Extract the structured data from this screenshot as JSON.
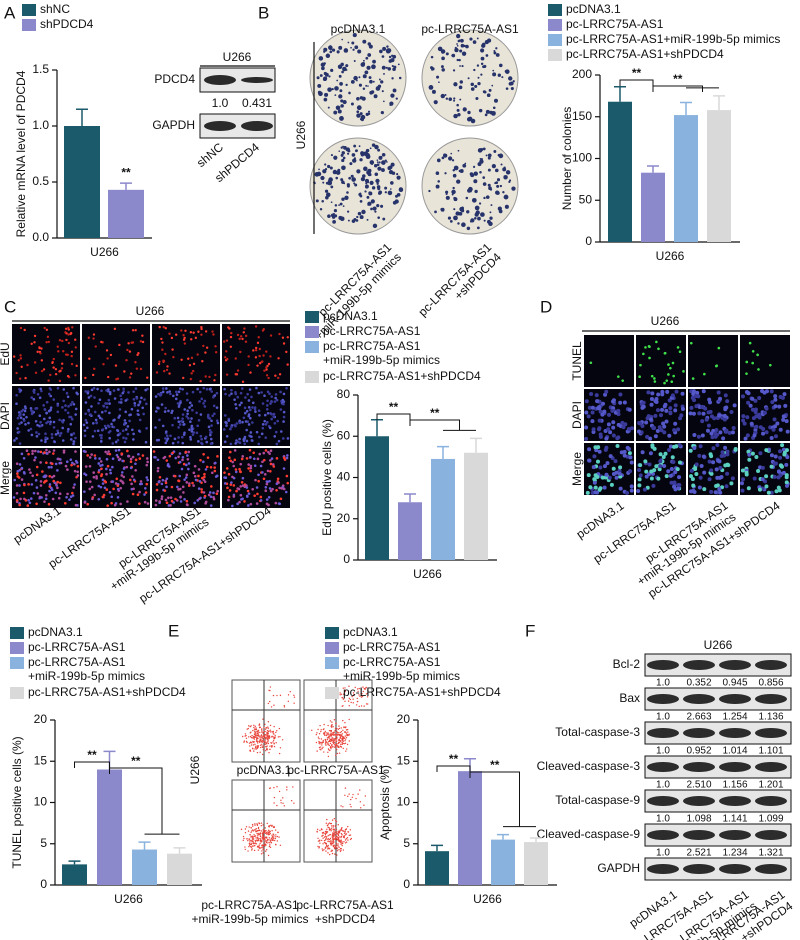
{
  "panel_labels": [
    "A",
    "B",
    "C",
    "D",
    "E",
    "F"
  ],
  "blot_a": {
    "cell_line": "U266",
    "rows": [
      "PDCD4",
      "GAPDH"
    ],
    "ratios": [
      "1.0",
      "0.431"
    ],
    "lanes": [
      "shNC",
      "shPDCD4"
    ]
  },
  "colony_images": {
    "cell_line": "U266",
    "columns": [
      "pcDNA3.1",
      "pc-LRRC75A-AS1"
    ],
    "bottom": [
      "pc-LRRC75A-AS1\n+miR-199b-5p mimics",
      "pc-LRRC75A-AS1\n+shPDCD4"
    ]
  },
  "edu_images": {
    "cell_line": "U266",
    "rows": [
      "EdU",
      "DAPI",
      "Merge"
    ],
    "columns": [
      "pcDNA3.1",
      "pc-LRRC75A-AS1",
      "pc-LRRC75A-AS1\n+miR-199b-5p mimics",
      "pc-LRRC75A-AS1+shPDCD4"
    ]
  },
  "tunel_images": {
    "cell_line": "U266",
    "rows": [
      "TUNEL",
      "DAPI",
      "Merge"
    ],
    "columns": [
      "pcDNA3.1",
      "pc-LRRC75A-AS1",
      "pc-LRRC75A-AS1\n+miR-199b-5p mimics",
      "pc-LRRC75A-AS1+shPDCD4"
    ]
  },
  "flow_images": {
    "cell_line": "U266",
    "labels": [
      "pcDNA3.1",
      "pc-LRRC75A-AS1",
      "pc-LRRC75A-AS1\n+miR-199b-5p mimics",
      "pc-LRRC75A-AS1\n+shPDCD4"
    ]
  },
  "blot_f": {
    "cell_line": "U266",
    "rows": [
      {
        "name": "Bcl-2",
        "ratios": [
          "1.0",
          "0.352",
          "0.945",
          "0.856"
        ]
      },
      {
        "name": "Bax",
        "ratios": [
          "1.0",
          "2.663",
          "1.254",
          "1.136"
        ]
      },
      {
        "name": "Total-caspase-3",
        "ratios": [
          "1.0",
          "0.952",
          "1.014",
          "1.101"
        ]
      },
      {
        "name": "Cleaved-caspase-3",
        "ratios": [
          "1.0",
          "2.510",
          "1.156",
          "1.201"
        ]
      },
      {
        "name": "Total-caspase-9",
        "ratios": [
          "1.0",
          "1.098",
          "1.141",
          "1.099"
        ]
      },
      {
        "name": "Cleaved-caspase-9",
        "ratios": [
          "1.0",
          "2.521",
          "1.234",
          "1.321"
        ]
      },
      {
        "name": "GAPDH"
      }
    ],
    "lanes": [
      "pcDNA3.1",
      "pc-LRRC75A-AS1",
      "pc-LRRC75A-AS1\n+miR-199b-5p mimics",
      "pc-LRRC75A-AS1\n+shPDCD4"
    ]
  },
  "chart_data": [
    {
      "type": "bar",
      "ylabel": "Relative mRNA level of PDCD4",
      "categories": [
        "U266"
      ],
      "series": [
        {
          "name": "shNC",
          "color": "#1b5a6a",
          "values": [
            1.0
          ],
          "errors": [
            0.15
          ]
        },
        {
          "name": "shPDCD4",
          "color": "#8c88cc",
          "values": [
            0.43
          ],
          "errors": [
            0.06
          ]
        }
      ],
      "ylim": [
        0,
        1.5
      ],
      "yticks": [
        {
          "value": 0,
          "label": "0.0"
        },
        0.5,
        {
          "value": 1,
          "label": "1.0"
        },
        1.5
      ],
      "annotations": [
        "**"
      ]
    },
    {
      "type": "bar",
      "ylabel": "Number of colonies",
      "categories": [
        "U266"
      ],
      "series": [
        {
          "name": "pcDNA3.1",
          "color": "#1b5a6a",
          "values": [
            168
          ],
          "errors": [
            18
          ]
        },
        {
          "name": "pc-LRRC75A-AS1",
          "color": "#8c88cc",
          "values": [
            83
          ],
          "errors": [
            8
          ]
        },
        {
          "name": "pc-LRRC75A-AS1+miR-199b-5p mimics",
          "color": "#8ab2de",
          "values": [
            152
          ],
          "errors": [
            15
          ]
        },
        {
          "name": "pc-LRRC75A-AS1+shPDCD4",
          "color": "#d9d9d9",
          "values": [
            158
          ],
          "errors": [
            17
          ]
        }
      ],
      "ylim": [
        0,
        200
      ],
      "yticks": [
        0,
        50,
        100,
        150,
        200
      ],
      "annotations": [
        "**",
        "**"
      ]
    },
    {
      "type": "bar",
      "ylabel": "EdU positive cells (%)",
      "categories": [
        "U266"
      ],
      "series": [
        {
          "name": "pcDNA3.1",
          "color": "#1b5a6a",
          "values": [
            60
          ],
          "errors": [
            8
          ]
        },
        {
          "name": "pc-LRRC75A-AS1",
          "color": "#8c88cc",
          "values": [
            28
          ],
          "errors": [
            4
          ]
        },
        {
          "name": "pc-LRRC75A-AS1\n+miR-199b-5p mimics",
          "color": "#8ab2de",
          "values": [
            49
          ],
          "errors": [
            6
          ]
        },
        {
          "name": "pc-LRRC75A-AS1+shPDCD4",
          "color": "#d9d9d9",
          "values": [
            52
          ],
          "errors": [
            7
          ]
        }
      ],
      "ylim": [
        0,
        80
      ],
      "yticks": [
        0,
        20,
        40,
        60,
        80
      ],
      "annotations": [
        "**",
        "**"
      ]
    },
    {
      "type": "bar",
      "ylabel": "TUNEL positive cells (%)",
      "categories": [
        "U266"
      ],
      "series": [
        {
          "name": "pcDNA3.1",
          "color": "#1b5a6a",
          "values": [
            2.5
          ],
          "errors": [
            0.4
          ]
        },
        {
          "name": "pc-LRRC75A-AS1",
          "color": "#8c88cc",
          "values": [
            14
          ],
          "errors": [
            2.2
          ]
        },
        {
          "name": "pc-LRRC75A-AS1\n+miR-199b-5p mimics",
          "color": "#8ab2de",
          "values": [
            4.3
          ],
          "errors": [
            0.9
          ]
        },
        {
          "name": "pc-LRRC75A-AS1+shPDCD4",
          "color": "#d9d9d9",
          "values": [
            3.8
          ],
          "errors": [
            0.7
          ]
        }
      ],
      "ylim": [
        0,
        20
      ],
      "yticks": [
        0,
        5,
        10,
        15,
        20
      ],
      "annotations": [
        "**",
        "**"
      ]
    },
    {
      "type": "bar",
      "ylabel": "Apoptosis (%)",
      "categories": [
        "U266"
      ],
      "series": [
        {
          "name": "pcDNA3.1",
          "color": "#1b5a6a",
          "values": [
            4.1
          ],
          "errors": [
            0.7
          ]
        },
        {
          "name": "pc-LRRC75A-AS1",
          "color": "#8c88cc",
          "values": [
            13.8
          ],
          "errors": [
            1.5
          ]
        },
        {
          "name": "pc-LRRC75A-AS1\n+miR-199b-5p mimics",
          "color": "#8ab2de",
          "values": [
            5.5
          ],
          "errors": [
            0.6
          ]
        },
        {
          "name": "pc-LRRC75A-AS1+shPDCD4",
          "color": "#d9d9d9",
          "values": [
            5.2
          ],
          "errors": [
            0.5
          ]
        }
      ],
      "ylim": [
        0,
        20
      ],
      "yticks": [
        0,
        5,
        10,
        15,
        20
      ],
      "annotations": [
        "**",
        "**"
      ]
    }
  ]
}
